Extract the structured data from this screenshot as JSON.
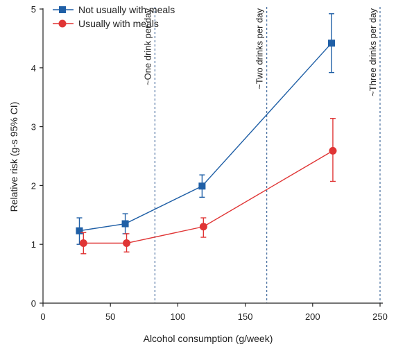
{
  "chart_data": {
    "type": "line",
    "xlabel": "Alcohol consumption (g/week)",
    "ylabel": "Relative risk (g-s 95% CI)",
    "xlim": [
      0,
      250
    ],
    "ylim": [
      0,
      5
    ],
    "xticks": [
      0,
      50,
      100,
      150,
      200,
      250
    ],
    "yticks": [
      0,
      1,
      2,
      3,
      4,
      5
    ],
    "legend_position": "top-left",
    "series": [
      {
        "name": "Not usually with meals",
        "color": "#1f5fa6",
        "marker": "square",
        "x": [
          27,
          61,
          118,
          214
        ],
        "y": [
          1.23,
          1.35,
          1.99,
          4.42
        ],
        "lower": [
          1.0,
          1.18,
          1.8,
          3.92
        ],
        "upper": [
          1.45,
          1.52,
          2.18,
          4.92
        ]
      },
      {
        "name": "Usually with meals",
        "color": "#e03535",
        "marker": "circle",
        "x": [
          30,
          62,
          119,
          215
        ],
        "y": [
          1.02,
          1.02,
          1.3,
          2.59
        ],
        "lower": [
          0.84,
          0.87,
          1.12,
          2.07
        ],
        "upper": [
          1.2,
          1.18,
          1.45,
          3.14
        ]
      }
    ],
    "reference_lines": [
      {
        "x": 83,
        "label": "~One drink per day"
      },
      {
        "x": 166,
        "label": "~Two drinks per day"
      },
      {
        "x": 250,
        "label": "~Three drinks per day"
      }
    ]
  }
}
